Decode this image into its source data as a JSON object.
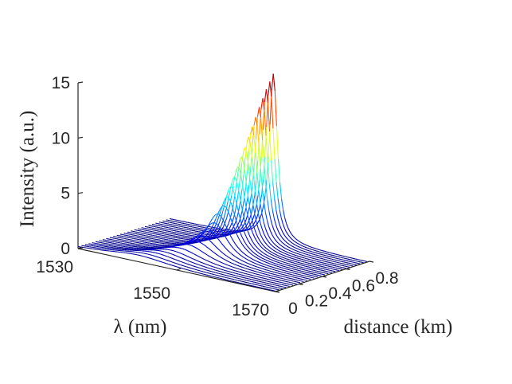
{
  "chart_data": {
    "type": "line",
    "subtype": "3d-waterfall",
    "title": "",
    "xlabel": "λ (nm)",
    "ylabel": "distance (km)",
    "zlabel": "Intensity (a.u.)",
    "xlim": [
      1530,
      1570
    ],
    "ylim": [
      0,
      0.8
    ],
    "zlim": [
      0,
      15
    ],
    "x_ticks": [
      "1530",
      "1550",
      "1570"
    ],
    "y_ticks": [
      "0",
      "0.2",
      "0.4",
      "0.6",
      "0.8"
    ],
    "z_ticks": [
      "0",
      "5",
      "10",
      "15"
    ],
    "colormap": "jet",
    "grid": false,
    "legend": "none",
    "series": [
      {
        "distance": 0.0,
        "peak_wavelength": 1542,
        "width": 8.0,
        "peak": 0.6
      },
      {
        "distance": 0.03,
        "peak_wavelength": 1543,
        "width": 7.5,
        "peak": 0.7
      },
      {
        "distance": 0.06,
        "peak_wavelength": 1544,
        "width": 7.0,
        "peak": 0.8
      },
      {
        "distance": 0.09,
        "peak_wavelength": 1545,
        "width": 6.5,
        "peak": 0.9
      },
      {
        "distance": 0.12,
        "peak_wavelength": 1546,
        "width": 6.0,
        "peak": 1.0
      },
      {
        "distance": 0.15,
        "peak_wavelength": 1547,
        "width": 5.5,
        "peak": 1.2
      },
      {
        "distance": 0.18,
        "peak_wavelength": 1548,
        "width": 5.0,
        "peak": 1.5
      },
      {
        "distance": 0.21,
        "peak_wavelength": 1549,
        "width": 4.5,
        "peak": 1.8
      },
      {
        "distance": 0.24,
        "peak_wavelength": 1549.5,
        "width": 4.0,
        "peak": 2.2
      },
      {
        "distance": 0.27,
        "peak_wavelength": 1550,
        "width": 3.6,
        "peak": 2.7
      },
      {
        "distance": 0.3,
        "peak_wavelength": 1550.5,
        "width": 3.2,
        "peak": 3.3
      },
      {
        "distance": 0.33,
        "peak_wavelength": 1550.5,
        "width": 2.9,
        "peak": 4.0
      },
      {
        "distance": 0.36,
        "peak_wavelength": 1551,
        "width": 2.6,
        "peak": 4.7
      },
      {
        "distance": 0.39,
        "peak_wavelength": 1551,
        "width": 2.3,
        "peak": 5.4
      },
      {
        "distance": 0.42,
        "peak_wavelength": 1551,
        "width": 2.1,
        "peak": 6.2
      },
      {
        "distance": 0.45,
        "peak_wavelength": 1551,
        "width": 1.9,
        "peak": 7.0
      },
      {
        "distance": 0.48,
        "peak_wavelength": 1551,
        "width": 1.8,
        "peak": 7.8
      },
      {
        "distance": 0.51,
        "peak_wavelength": 1551,
        "width": 1.6,
        "peak": 8.6
      },
      {
        "distance": 0.54,
        "peak_wavelength": 1551,
        "width": 1.5,
        "peak": 9.4
      },
      {
        "distance": 0.57,
        "peak_wavelength": 1551,
        "width": 1.4,
        "peak": 10.2
      },
      {
        "distance": 0.6,
        "peak_wavelength": 1551,
        "width": 1.3,
        "peak": 11.0
      },
      {
        "distance": 0.63,
        "peak_wavelength": 1551,
        "width": 1.25,
        "peak": 11.8
      },
      {
        "distance": 0.66,
        "peak_wavelength": 1551,
        "width": 1.2,
        "peak": 12.6
      },
      {
        "distance": 0.69,
        "peak_wavelength": 1551,
        "width": 1.15,
        "peak": 13.3
      },
      {
        "distance": 0.72,
        "peak_wavelength": 1551,
        "width": 1.1,
        "peak": 14.0
      },
      {
        "distance": 0.75,
        "peak_wavelength": 1551,
        "width": 1.05,
        "peak": 14.6
      },
      {
        "distance": 0.78,
        "peak_wavelength": 1551,
        "width": 1.0,
        "peak": 15.2
      }
    ]
  }
}
